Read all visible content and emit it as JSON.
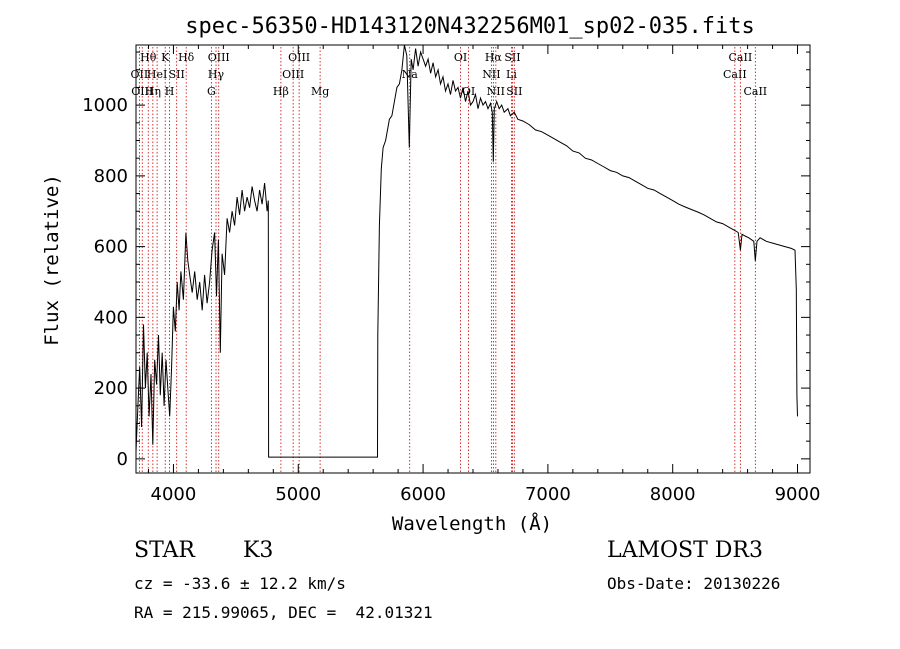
{
  "chart_data": {
    "type": "line",
    "title": "spec-56350-HD143120N432256M01_sp02-035.fits",
    "xlabel": "Wavelength (Å)",
    "ylabel": "Flux (relative)",
    "xlim": [
      3700,
      9100
    ],
    "ylim": [
      -40,
      1170
    ],
    "x_ticks": [
      4000,
      5000,
      6000,
      7000,
      8000,
      9000
    ],
    "y_ticks": [
      0,
      200,
      400,
      600,
      800,
      1000
    ],
    "grid": false,
    "series": [
      {
        "name": "spectrum",
        "points": [
          [
            3700,
            20
          ],
          [
            3715,
            150
          ],
          [
            3730,
            260
          ],
          [
            3745,
            90
          ],
          [
            3760,
            380
          ],
          [
            3775,
            200
          ],
          [
            3790,
            300
          ],
          [
            3805,
            120
          ],
          [
            3820,
            240
          ],
          [
            3835,
            40
          ],
          [
            3850,
            280
          ],
          [
            3865,
            210
          ],
          [
            3880,
            350
          ],
          [
            3895,
            180
          ],
          [
            3910,
            300
          ],
          [
            3925,
            150
          ],
          [
            3940,
            280
          ],
          [
            3955,
            200
          ],
          [
            3970,
            120
          ],
          [
            3985,
            260
          ],
          [
            4000,
            430
          ],
          [
            4015,
            360
          ],
          [
            4030,
            500
          ],
          [
            4045,
            420
          ],
          [
            4060,
            530
          ],
          [
            4080,
            450
          ],
          [
            4100,
            640
          ],
          [
            4115,
            560
          ],
          [
            4130,
            520
          ],
          [
            4150,
            470
          ],
          [
            4170,
            530
          ],
          [
            4190,
            450
          ],
          [
            4210,
            500
          ],
          [
            4230,
            420
          ],
          [
            4250,
            520
          ],
          [
            4270,
            440
          ],
          [
            4290,
            500
          ],
          [
            4310,
            590
          ],
          [
            4330,
            640
          ],
          [
            4345,
            460
          ],
          [
            4360,
            620
          ],
          [
            4375,
            300
          ],
          [
            4390,
            580
          ],
          [
            4410,
            520
          ],
          [
            4430,
            680
          ],
          [
            4450,
            640
          ],
          [
            4470,
            700
          ],
          [
            4490,
            660
          ],
          [
            4510,
            740
          ],
          [
            4530,
            690
          ],
          [
            4550,
            760
          ],
          [
            4570,
            700
          ],
          [
            4590,
            740
          ],
          [
            4610,
            710
          ],
          [
            4630,
            770
          ],
          [
            4650,
            730
          ],
          [
            4670,
            700
          ],
          [
            4690,
            760
          ],
          [
            4710,
            720
          ],
          [
            4730,
            780
          ],
          [
            4750,
            700
          ],
          [
            4760,
            730
          ],
          [
            4762,
            5
          ],
          [
            5635,
            5
          ],
          [
            5637,
            350
          ],
          [
            5650,
            660
          ],
          [
            5665,
            820
          ],
          [
            5680,
            880
          ],
          [
            5700,
            900
          ],
          [
            5715,
            930
          ],
          [
            5730,
            960
          ],
          [
            5750,
            970
          ],
          [
            5770,
            1010
          ],
          [
            5790,
            1050
          ],
          [
            5810,
            1060
          ],
          [
            5830,
            1100
          ],
          [
            5850,
            1170
          ],
          [
            5870,
            1140
          ],
          [
            5890,
            880
          ],
          [
            5905,
            1130
          ],
          [
            5920,
            1100
          ],
          [
            5940,
            1160
          ],
          [
            5960,
            1110
          ],
          [
            5980,
            1150
          ],
          [
            6000,
            1130
          ],
          [
            6020,
            1110
          ],
          [
            6040,
            1130
          ],
          [
            6060,
            1090
          ],
          [
            6080,
            1120
          ],
          [
            6100,
            1080
          ],
          [
            6120,
            1100
          ],
          [
            6140,
            1060
          ],
          [
            6160,
            1080
          ],
          [
            6180,
            1040
          ],
          [
            6200,
            1060
          ],
          [
            6220,
            1030
          ],
          [
            6240,
            1070
          ],
          [
            6260,
            1040
          ],
          [
            6280,
            1050
          ],
          [
            6300,
            1020
          ],
          [
            6320,
            1050
          ],
          [
            6340,
            1010
          ],
          [
            6360,
            1040
          ],
          [
            6380,
            1000
          ],
          [
            6400,
            1010
          ],
          [
            6420,
            1030
          ],
          [
            6440,
            990
          ],
          [
            6460,
            1020
          ],
          [
            6480,
            1000
          ],
          [
            6500,
            1010
          ],
          [
            6520,
            990
          ],
          [
            6540,
            1005
          ],
          [
            6555,
            980
          ],
          [
            6563,
            840
          ],
          [
            6571,
            990
          ],
          [
            6590,
            1010
          ],
          [
            6610,
            990
          ],
          [
            6630,
            1000
          ],
          [
            6650,
            980
          ],
          [
            6680,
            990
          ],
          [
            6700,
            970
          ],
          [
            6730,
            980
          ],
          [
            6760,
            960
          ],
          [
            6800,
            955
          ],
          [
            6850,
            945
          ],
          [
            6900,
            930
          ],
          [
            6950,
            925
          ],
          [
            7000,
            915
          ],
          [
            7050,
            905
          ],
          [
            7100,
            895
          ],
          [
            7150,
            885
          ],
          [
            7200,
            870
          ],
          [
            7250,
            865
          ],
          [
            7300,
            850
          ],
          [
            7350,
            845
          ],
          [
            7400,
            835
          ],
          [
            7450,
            825
          ],
          [
            7500,
            815
          ],
          [
            7550,
            810
          ],
          [
            7600,
            800
          ],
          [
            7650,
            795
          ],
          [
            7700,
            785
          ],
          [
            7750,
            775
          ],
          [
            7800,
            765
          ],
          [
            7850,
            760
          ],
          [
            7900,
            750
          ],
          [
            7950,
            740
          ],
          [
            8000,
            730
          ],
          [
            8050,
            720
          ],
          [
            8100,
            712
          ],
          [
            8150,
            705
          ],
          [
            8200,
            698
          ],
          [
            8250,
            690
          ],
          [
            8300,
            680
          ],
          [
            8350,
            670
          ],
          [
            8400,
            665
          ],
          [
            8450,
            655
          ],
          [
            8500,
            645
          ],
          [
            8525,
            640
          ],
          [
            8542,
            590
          ],
          [
            8555,
            635
          ],
          [
            8580,
            630
          ],
          [
            8610,
            625
          ],
          [
            8650,
            615
          ],
          [
            8662,
            560
          ],
          [
            8675,
            615
          ],
          [
            8700,
            625
          ],
          [
            8750,
            615
          ],
          [
            8800,
            610
          ],
          [
            8850,
            605
          ],
          [
            8900,
            600
          ],
          [
            8950,
            595
          ],
          [
            8980,
            590
          ],
          [
            8990,
            480
          ],
          [
            8995,
            180
          ],
          [
            9000,
            120
          ]
        ]
      }
    ],
    "line_markers": [
      {
        "wavelength": 3727,
        "label": "OII",
        "row": 2
      },
      {
        "wavelength": 3750,
        "label": "OIII",
        "row": 3
      },
      {
        "wavelength": 3798,
        "label": "Hθ",
        "row": 1
      },
      {
        "wavelength": 3835,
        "label": "Hη",
        "row": 3
      },
      {
        "wavelength": 3869,
        "label": "HeI",
        "row": 2
      },
      {
        "wavelength": 3934,
        "label": "K",
        "row": 1
      },
      {
        "wavelength": 3969,
        "label": "H",
        "row": 3
      },
      {
        "wavelength": 4026,
        "label": "SII",
        "row": 2
      },
      {
        "wavelength": 4102,
        "label": "Hδ",
        "row": 1
      },
      {
        "wavelength": 4304,
        "label": "G",
        "row": 3
      },
      {
        "wavelength": 4341,
        "label": "Hγ",
        "row": 2
      },
      {
        "wavelength": 4363,
        "label": "OIII",
        "row": 1
      },
      {
        "wavelength": 4861,
        "label": "Hβ",
        "row": 3
      },
      {
        "wavelength": 4959,
        "label": "OIII",
        "row": 2
      },
      {
        "wavelength": 5007,
        "label": "OIII",
        "row": 1
      },
      {
        "wavelength": 5175,
        "label": "Mg",
        "row": 3
      },
      {
        "wavelength": 5893,
        "label": "Na",
        "row": 2
      },
      {
        "wavelength": 6300,
        "label": "OI",
        "row": 1
      },
      {
        "wavelength": 6364,
        "label": "OI",
        "row": 3
      },
      {
        "wavelength": 6548,
        "label": "NII",
        "row": 2
      },
      {
        "wavelength": 6563,
        "label": "Hα",
        "row": 1
      },
      {
        "wavelength": 6583,
        "label": "NII",
        "row": 3
      },
      {
        "wavelength": 6708,
        "label": "Li",
        "row": 2
      },
      {
        "wavelength": 6716,
        "label": "SII",
        "row": 1
      },
      {
        "wavelength": 6731,
        "label": "SII",
        "row": 3
      },
      {
        "wavelength": 8498,
        "label": "CaII",
        "row": 2
      },
      {
        "wavelength": 8542,
        "label": "CaII",
        "row": 1
      },
      {
        "wavelength": 8662,
        "label": "CaII",
        "row": 3
      }
    ],
    "colors": {
      "line": "#000000",
      "marker": "#cc0000",
      "axis": "#000000"
    }
  },
  "info": {
    "object_type": "STAR",
    "subclass": "K3",
    "survey": "LAMOST DR3",
    "cz": "cz = -33.6 ± 12.2 km/s",
    "obs_date": "Obs-Date: 20130226",
    "coords": "RA = 215.99065, DEC =  42.01321"
  }
}
